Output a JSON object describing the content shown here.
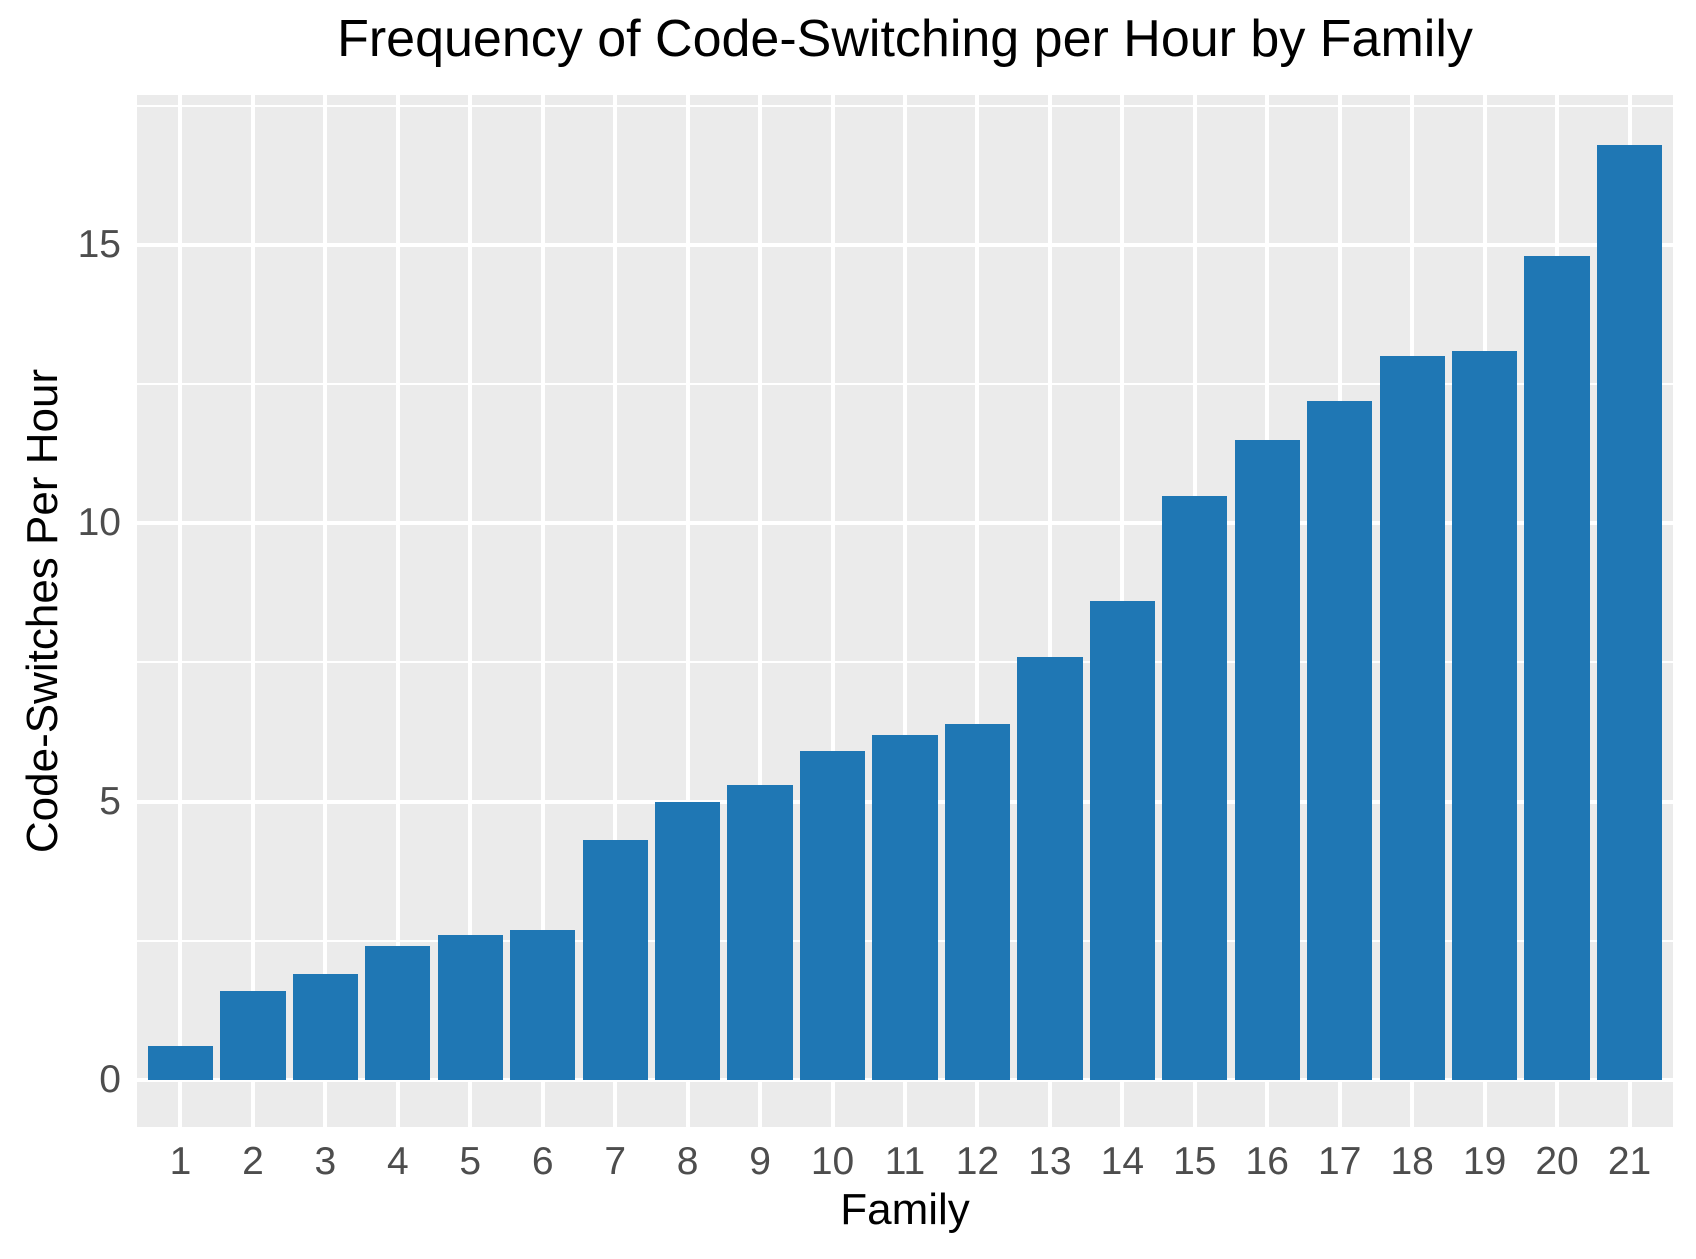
{
  "title": "Frequency of Code-Switching per Hour by Family",
  "chart_data": {
    "type": "bar",
    "title": "Frequency of Code-Switching per Hour by Family",
    "xlabel": "Family",
    "ylabel": "Code-Switches Per Hour",
    "categories": [
      "1",
      "2",
      "3",
      "4",
      "5",
      "6",
      "7",
      "8",
      "9",
      "10",
      "11",
      "12",
      "13",
      "14",
      "15",
      "16",
      "17",
      "18",
      "19",
      "20",
      "21"
    ],
    "values": [
      0.6,
      1.6,
      1.9,
      2.4,
      2.6,
      2.7,
      4.3,
      5.0,
      5.3,
      5.9,
      6.2,
      6.4,
      7.6,
      8.6,
      10.5,
      11.5,
      12.2,
      13.0,
      13.1,
      14.8,
      16.8
    ],
    "y_major_ticks": [
      0,
      5,
      10,
      15
    ],
    "y_minor_gridlines": [
      2.5,
      7.5,
      12.5,
      17.5
    ],
    "ylim": [
      -0.85,
      17.7
    ],
    "bar_width_fraction": 0.9,
    "grid": "on",
    "legend": "none",
    "style": "ggplot-grey-panel",
    "colors": {
      "bar_fill": "#1F77B4",
      "panel_background": "#EBEBEB",
      "gridline": "#FFFFFF",
      "tick_label": "#4D4D4D",
      "title_text": "#000000",
      "axis_label_text": "#000000"
    }
  }
}
